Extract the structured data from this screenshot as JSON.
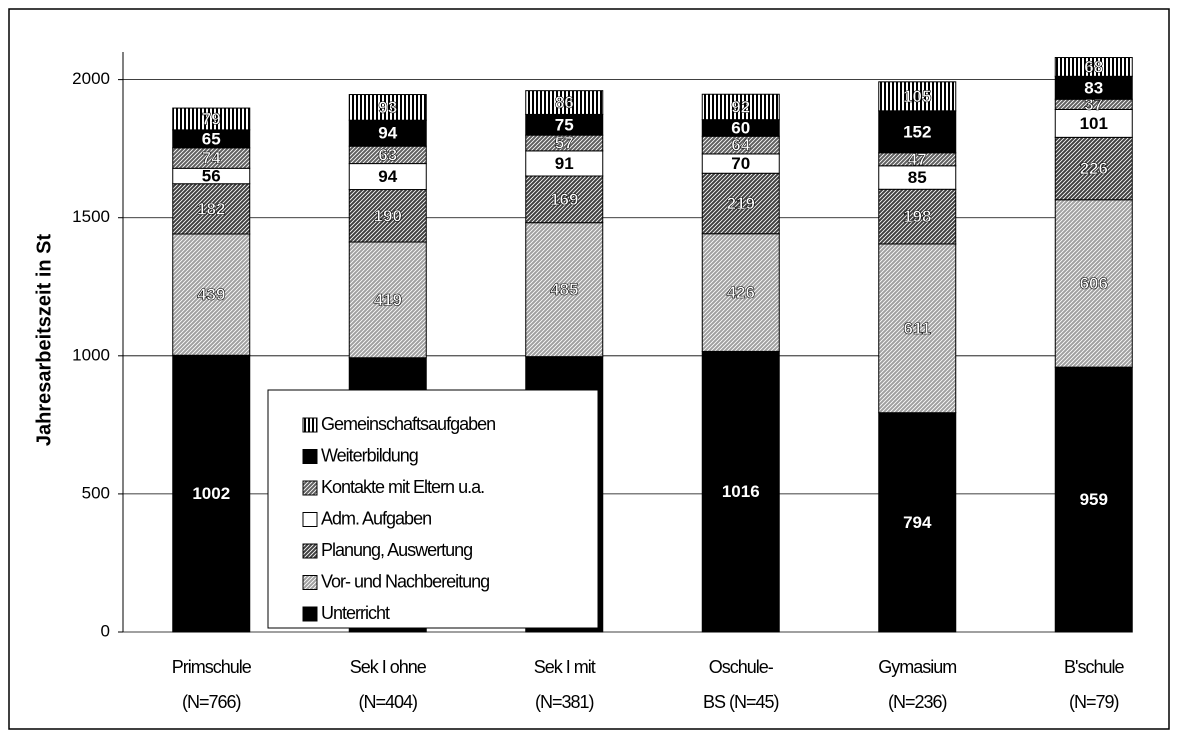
{
  "chart_data": {
    "type": "stacked-bar",
    "y_label": "Jahresarbeitszeit in St",
    "categories": [
      [
        "Primschule",
        "(N=766)"
      ],
      [
        "Sek I ohne",
        "(N=404)"
      ],
      [
        "Sek I mit",
        "(N=381)"
      ],
      [
        "Oschule-",
        "BS (N=45)"
      ],
      [
        "Gymasium",
        "(N=236)"
      ],
      [
        "B'schule",
        "(N=79)"
      ]
    ],
    "series": [
      {
        "name": "Unterricht",
        "color": "#000000",
        "pattern": "solid",
        "values": [
          1002,
          993,
          997,
          1016,
          794,
          959
        ]
      },
      {
        "name": "Vor- und Nachbereitung",
        "color": "#a0a0a0",
        "pattern": "hatch",
        "values": [
          439,
          419,
          485,
          426,
          611,
          606
        ]
      },
      {
        "name": "Planung, Auswertung",
        "color": "#404040",
        "pattern": "hatch",
        "values": [
          182,
          190,
          169,
          219,
          198,
          226
        ]
      },
      {
        "name": "Adm. Aufgaben",
        "color": "#ffffff",
        "pattern": "solid",
        "values": [
          56,
          94,
          91,
          70,
          85,
          101
        ]
      },
      {
        "name": "Kontakte mit Eltern u.a.",
        "color": "#606060",
        "pattern": "hatch",
        "values": [
          74,
          63,
          57,
          64,
          47,
          37
        ]
      },
      {
        "name": "Weiterbildung",
        "color": "#000000",
        "pattern": "solid",
        "values": [
          65,
          94,
          75,
          60,
          152,
          83
        ]
      },
      {
        "name": "Gemeinschaftsaufgaben",
        "color": "#000000",
        "pattern": "vertical",
        "values": [
          79,
          93,
          86,
          92,
          105,
          68
        ]
      }
    ],
    "ylim": [
      0,
      2100
    ],
    "yticks": [
      0,
      500,
      1000,
      1500,
      2000
    ],
    "grid": true,
    "legend": "bottom-left"
  }
}
